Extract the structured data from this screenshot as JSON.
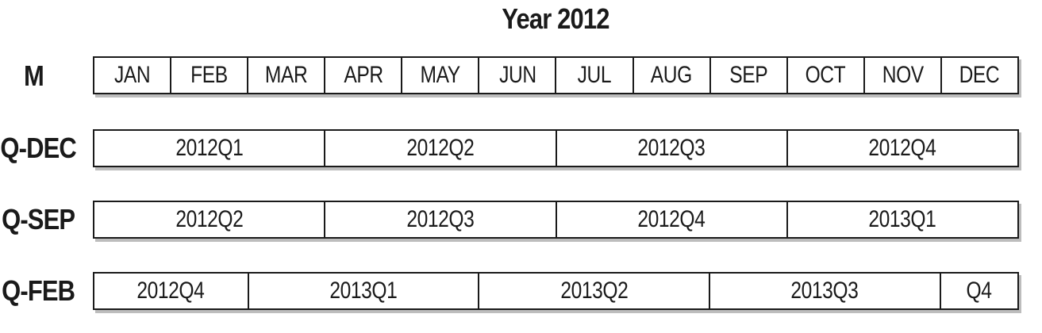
{
  "title": "Year 2012",
  "rows": [
    {
      "label": "M",
      "cells": [
        "JAN",
        "FEB",
        "MAR",
        "APR",
        "MAY",
        "JUN",
        "JUL",
        "AUG",
        "SEP",
        "OCT",
        "NOV",
        "DEC"
      ]
    },
    {
      "label": "Q-DEC",
      "cells": [
        "2012Q1",
        "2012Q2",
        "2012Q3",
        "2012Q4"
      ]
    },
    {
      "label": "Q-SEP",
      "cells": [
        "2012Q2",
        "2012Q3",
        "2012Q4",
        "2013Q1"
      ]
    },
    {
      "label": "Q-FEB",
      "cells": [
        "2012Q4",
        "2013Q1",
        "2013Q2",
        "2013Q3",
        "Q4"
      ]
    }
  ]
}
